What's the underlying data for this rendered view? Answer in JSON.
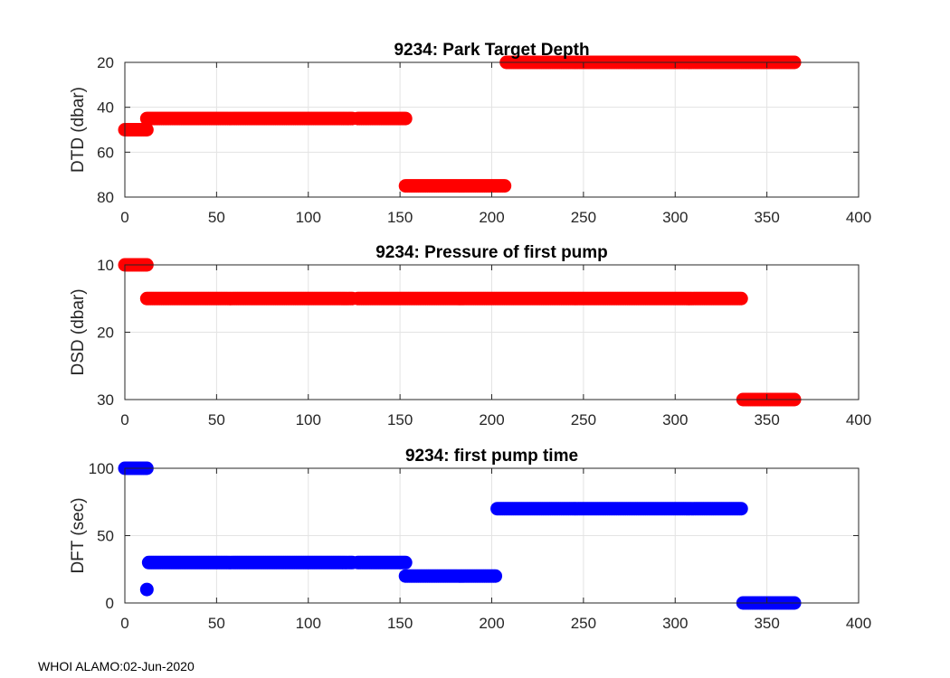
{
  "footer": "WHOI ALAMO:02-Jun-2020",
  "chart_data": [
    {
      "type": "scatter",
      "title": "9234: Park Target Depth",
      "xlabel": "",
      "ylabel": "DTD (dbar)",
      "xlim": [
        0,
        400
      ],
      "ylim": [
        20,
        80
      ],
      "y_reversed": true,
      "xticks": [
        0,
        50,
        100,
        150,
        200,
        250,
        300,
        350,
        400
      ],
      "yticks": [
        20,
        40,
        60,
        80
      ],
      "grid": true,
      "color": "#ff0000",
      "runs": [
        {
          "x_start": 0,
          "x_end": 12,
          "y": 50
        },
        {
          "x_start": 12,
          "x_end": 124,
          "y": 45
        },
        {
          "x_start": 127,
          "x_end": 153,
          "y": 45
        },
        {
          "x_start": 153,
          "x_end": 207,
          "y": 75
        },
        {
          "x_start": 208,
          "x_end": 365,
          "y": 20
        }
      ]
    },
    {
      "type": "scatter",
      "title": "9234: Pressure of first pump",
      "xlabel": "",
      "ylabel": "DSD (dbar)",
      "xlim": [
        0,
        400
      ],
      "ylim": [
        10,
        30
      ],
      "y_reversed": true,
      "xticks": [
        0,
        50,
        100,
        150,
        200,
        250,
        300,
        350,
        400
      ],
      "yticks": [
        10,
        20,
        30
      ],
      "grid": true,
      "color": "#ff0000",
      "runs": [
        {
          "x_start": 0,
          "x_end": 12,
          "y": 10
        },
        {
          "x_start": 12,
          "x_end": 124,
          "y": 15
        },
        {
          "x_start": 127,
          "x_end": 336,
          "y": 15
        },
        {
          "x_start": 337,
          "x_end": 365,
          "y": 30
        }
      ]
    },
    {
      "type": "scatter",
      "title": "9234: first pump time",
      "xlabel": "",
      "ylabel": "DFT (sec)",
      "xlim": [
        0,
        400
      ],
      "ylim": [
        0,
        100
      ],
      "y_reversed": false,
      "xticks": [
        0,
        50,
        100,
        150,
        200,
        250,
        300,
        350,
        400
      ],
      "yticks": [
        0,
        50,
        100
      ],
      "grid": true,
      "color": "#0000ff",
      "runs": [
        {
          "x_start": 0,
          "x_end": 12,
          "y": 100
        },
        {
          "x_start": 12,
          "x_end": 12,
          "y": 10
        },
        {
          "x_start": 13,
          "x_end": 124,
          "y": 30
        },
        {
          "x_start": 127,
          "x_end": 153,
          "y": 30
        },
        {
          "x_start": 153,
          "x_end": 202,
          "y": 20
        },
        {
          "x_start": 203,
          "x_end": 336,
          "y": 70
        },
        {
          "x_start": 337,
          "x_end": 365,
          "y": 0
        }
      ]
    }
  ]
}
